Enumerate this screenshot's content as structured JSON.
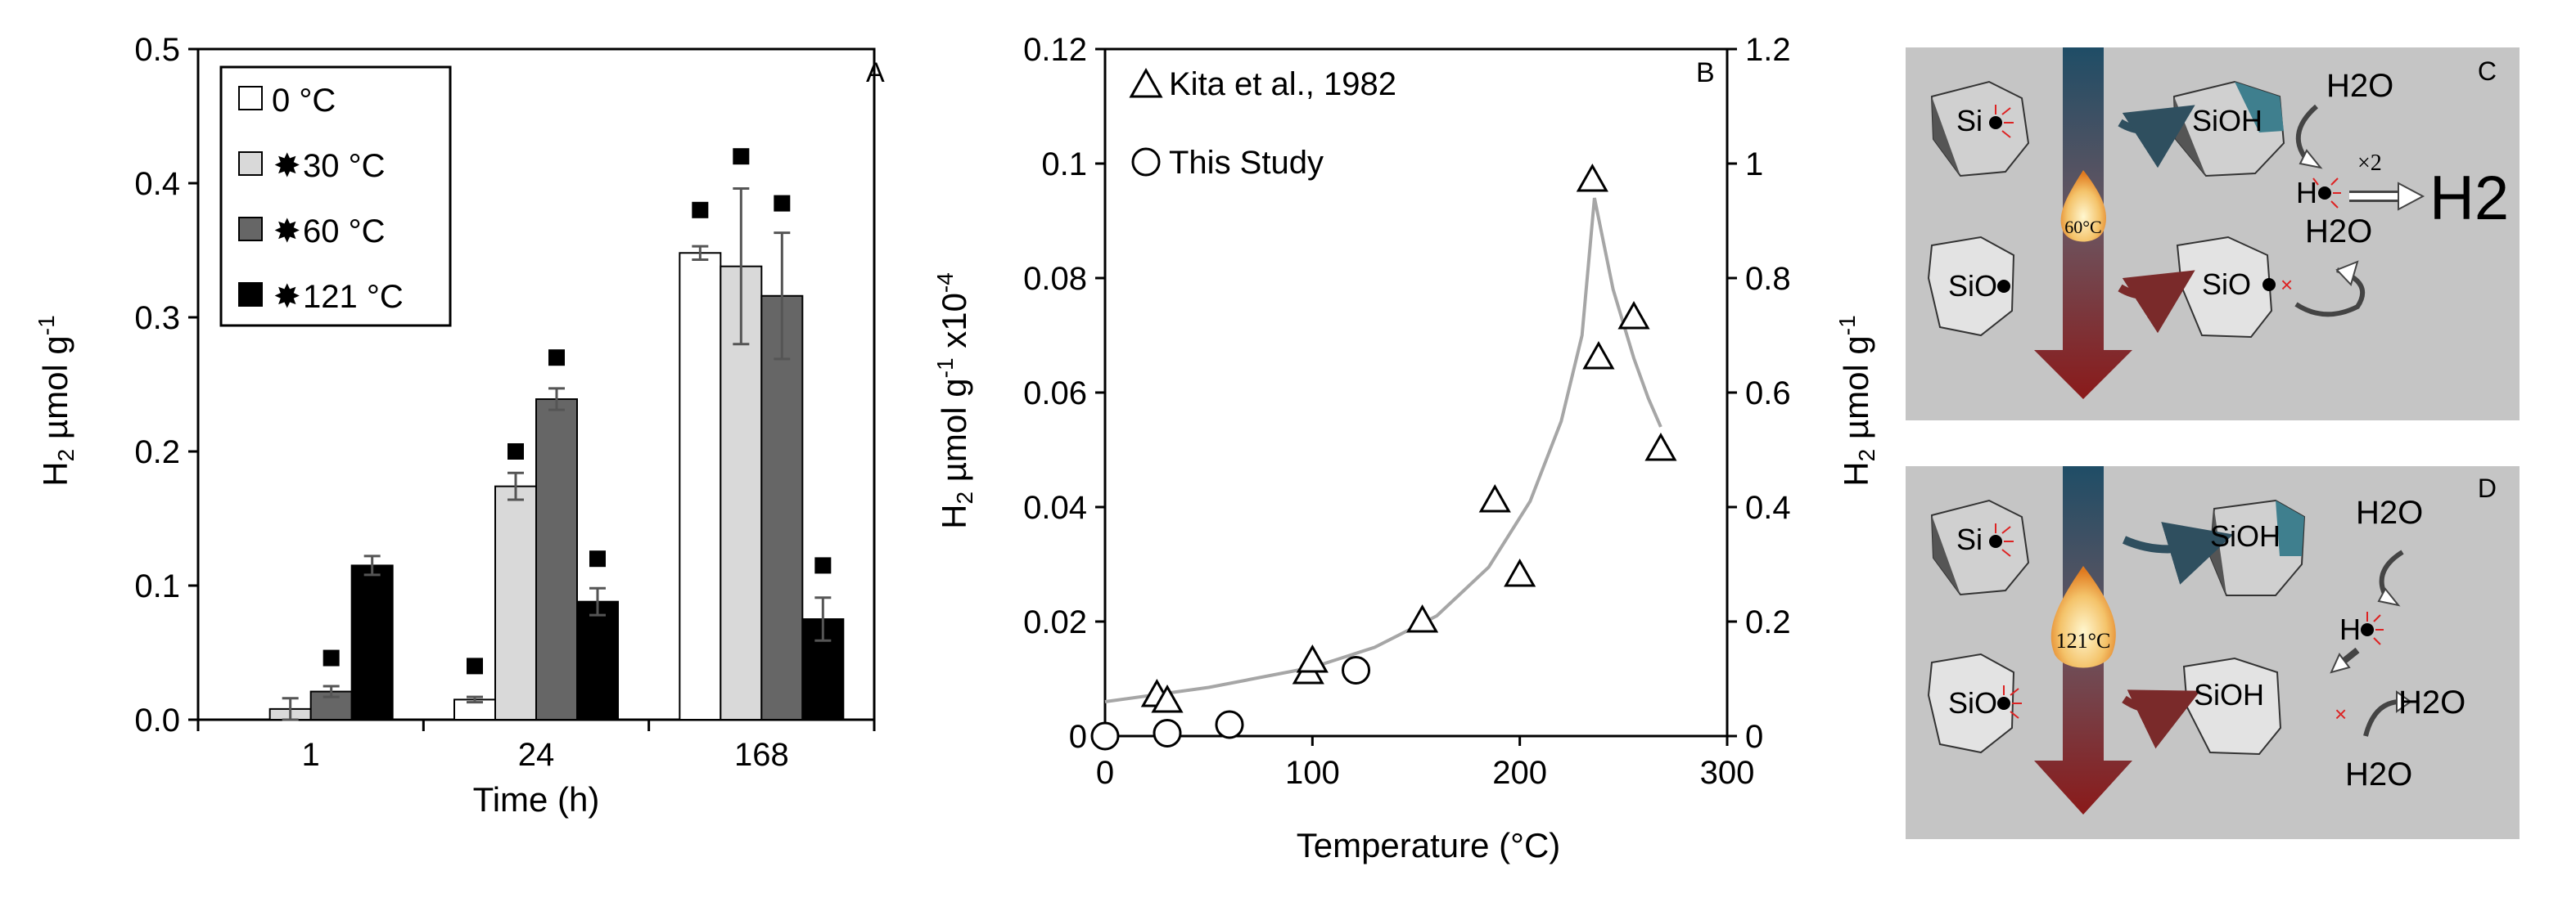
{
  "chart_data": [
    {
      "type": "bar",
      "panel": "A",
      "xlabel": "Time (h)",
      "ylabel": "H2 µmol g-1",
      "ylim": [
        0,
        0.5
      ],
      "yticks": [
        "0.0",
        "0.1",
        "0.2",
        "0.3",
        "0.4",
        "0.5"
      ],
      "categories": [
        "1",
        "24",
        "168"
      ],
      "legend_position": "top-left",
      "series": [
        {
          "name": "0 °C",
          "starred": false,
          "color": "#ffffff",
          "values": [
            0.0,
            0.015,
            0.348
          ],
          "errors": [
            0.0,
            0.002,
            0.005
          ],
          "markers": [
            null,
            0.04,
            0.38
          ]
        },
        {
          "name": "30 °C",
          "starred": true,
          "color": "#d9d9d9",
          "values": [
            0.008,
            0.174,
            0.338
          ],
          "errors": [
            0.008,
            0.01,
            0.058
          ],
          "markers": [
            null,
            0.2,
            0.42
          ]
        },
        {
          "name": "60 °C",
          "starred": true,
          "color": "#666666",
          "values": [
            0.021,
            0.239,
            0.316
          ],
          "errors": [
            0.004,
            0.008,
            0.047
          ],
          "markers": [
            0.046,
            0.27,
            0.385
          ]
        },
        {
          "name": "121 °C",
          "starred": true,
          "color": "#000000",
          "values": [
            0.115,
            0.088,
            0.075
          ],
          "errors": [
            0.007,
            0.01,
            0.016
          ],
          "markers": [
            null,
            0.12,
            0.115
          ]
        }
      ]
    },
    {
      "type": "scatter",
      "panel": "B",
      "xlabel": "Temperature (°C)",
      "ylabel_left": "H2 µmol g-1 x10-4",
      "ylabel_right": "H2 µmol g-1",
      "xlim": [
        0,
        300
      ],
      "xticks": [
        "0",
        "100",
        "200",
        "300"
      ],
      "ylim_left": [
        0,
        0.12
      ],
      "ylim_right": [
        0,
        1.2
      ],
      "yticks_left": [
        "0",
        "0.02",
        "0.04",
        "0.06",
        "0.08",
        "0.1",
        "0.12"
      ],
      "yticks_right": [
        "0",
        "0.2",
        "0.4",
        "0.6",
        "0.8",
        "1",
        "1.2"
      ],
      "legend_position": "top-left",
      "series": [
        {
          "name": "Kita et al., 1982",
          "marker": "triangle",
          "axis": "left",
          "x": [
            25,
            30,
            98,
            100,
            153,
            188,
            200,
            235,
            238,
            255,
            268
          ],
          "y": [
            0.007,
            0.006,
            0.011,
            0.013,
            0.02,
            0.041,
            0.028,
            0.097,
            0.066,
            0.073,
            0.05
          ]
        },
        {
          "name": "This Study",
          "marker": "circle",
          "axis": "right",
          "x": [
            0,
            30,
            60,
            121
          ],
          "y": [
            0.0,
            0.005,
            0.02,
            0.115
          ]
        }
      ],
      "trend_line": {
        "color": "#a6a6a6",
        "x": [
          0,
          50,
          100,
          130,
          160,
          185,
          205,
          220,
          230,
          236,
          245,
          255,
          262,
          268
        ],
        "y": [
          0.006,
          0.0085,
          0.012,
          0.0155,
          0.021,
          0.0295,
          0.041,
          0.055,
          0.07,
          0.094,
          0.078,
          0.066,
          0.059,
          0.054
        ]
      }
    }
  ],
  "schematics": {
    "panel_c": {
      "label": "C",
      "temperature": "60°C",
      "si": "Si",
      "sio_top": "SiOH",
      "sio": "SiO",
      "sio_right": "SiO",
      "h": "H",
      "h2o_top": "H2O",
      "h2o_bottom": "H2O",
      "times2": "×2",
      "h2": "H2"
    },
    "panel_d": {
      "label": "D",
      "temperature": "121°C",
      "si": "Si",
      "sioh_top": "SiOH",
      "sio": "SiO",
      "sioh_bottom": "SiOH",
      "h": "H",
      "h2o_top": "H2O",
      "h2o_right": "H2O",
      "h2o_bottom": "H2O"
    }
  }
}
